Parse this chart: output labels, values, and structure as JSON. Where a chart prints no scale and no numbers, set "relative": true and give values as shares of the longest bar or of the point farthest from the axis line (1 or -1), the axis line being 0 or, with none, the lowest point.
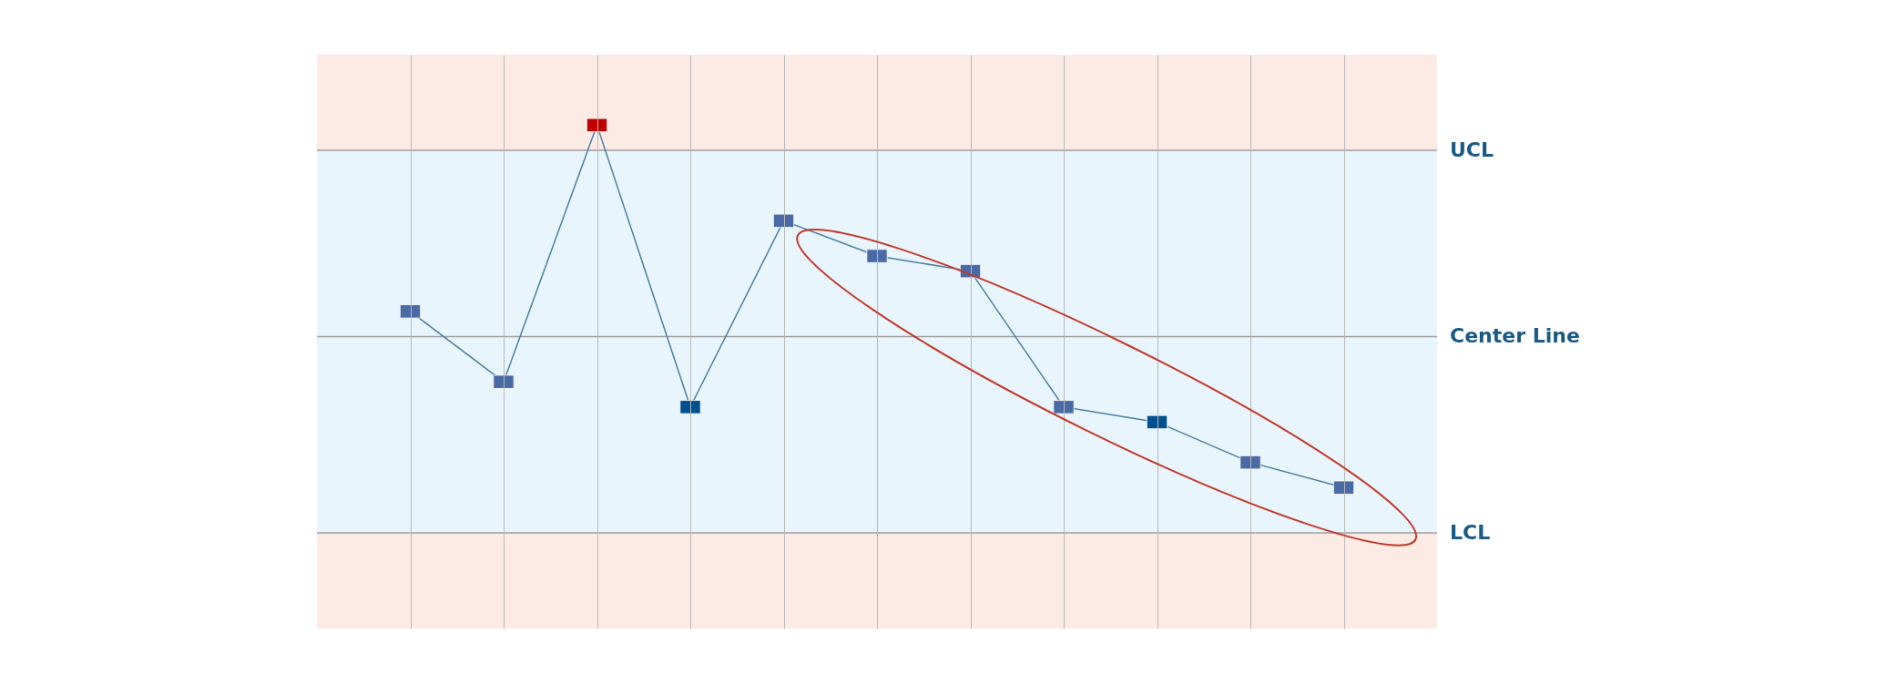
{
  "chart_data": {
    "type": "line",
    "relative": true,
    "categories": [
      null,
      null,
      null,
      null,
      null,
      null,
      null,
      null,
      null,
      null,
      null
    ],
    "series": [
      {
        "color": "#4a7fa0",
        "colors": [
          "#4a6aa5",
          "#4a6aa5",
          "#c00000",
          "#00508f",
          "#4a6aa5",
          "#4a6aa5",
          "#4a6aa5",
          "#4a6aa5",
          "#00508f",
          "#4a6aa5",
          "#4a6aa5"
        ],
        "values": [
          0.63,
          0.49,
          1,
          0.44,
          0.81,
          0.74,
          0.71,
          0.44,
          0.41,
          0.33,
          0.28
        ]
      }
    ],
    "marker": "square",
    "grid": "x",
    "ref_lines": [
      {
        "axis": "y",
        "value": 0.95,
        "label": "UCL",
        "color": "#9e9e9e"
      },
      {
        "axis": "y",
        "value": 0.58,
        "label": "Center Line",
        "color": "#9e9e9e"
      },
      {
        "axis": "y",
        "value": 0.19,
        "label": "LCL",
        "color": "#9e9e9e"
      }
    ],
    "bands": [
      {
        "axis": "y",
        "from": 0.95,
        "to": 1.14,
        "color": "#fcebe4"
      },
      {
        "axis": "y",
        "from": 0.19,
        "to": 0.95,
        "color": "#e8f5fc"
      },
      {
        "axis": "y",
        "from": 0,
        "to": 0.19,
        "color": "#fcebe4"
      }
    ]
  }
}
